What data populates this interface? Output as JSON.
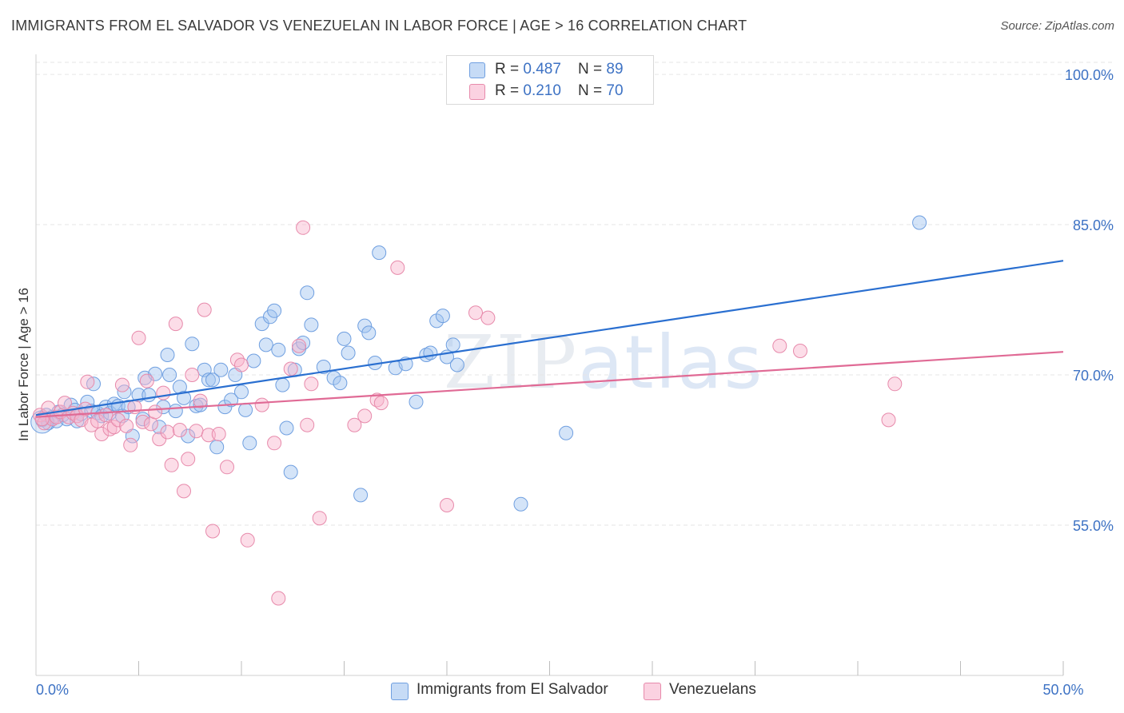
{
  "title": "IMMIGRANTS FROM EL SALVADOR VS VENEZUELAN IN LABOR FORCE | AGE > 16 CORRELATION CHART",
  "source": "Source: ZipAtlas.com",
  "watermark": {
    "part1": "ZIP",
    "part2": "atlas"
  },
  "legend": {
    "rows": [
      {
        "r_label": "R = ",
        "r_value": "0.487",
        "n_label": "N = ",
        "n_value": "89"
      },
      {
        "r_label": "R = ",
        "r_value": "0.210",
        "n_label": "N = ",
        "n_value": "70"
      }
    ]
  },
  "bottom_legend": {
    "items": [
      {
        "label": "Immigrants from El Salvador"
      },
      {
        "label": "Venezuelans"
      }
    ]
  },
  "colors": {
    "blue_fill": "rgba(160,195,240,0.45)",
    "blue_stroke": "#6f9fe0",
    "blue_line": "#2a6fd0",
    "pink_fill": "rgba(248,180,205,0.45)",
    "pink_stroke": "#e78aab",
    "pink_line": "#e06a95",
    "grid": "#e6e6e6",
    "axis_text": "#3d72c4"
  },
  "chart_data": {
    "type": "scatter",
    "title": "IMMIGRANTS FROM EL SALVADOR VS VENEZUELAN IN LABOR FORCE | AGE > 16 CORRELATION CHART",
    "xlabel": "",
    "ylabel": "In Labor Force | Age > 16",
    "xlim": [
      0,
      50
    ],
    "ylim": [
      40,
      102
    ],
    "x_tick_labels": [
      {
        "value": 0,
        "label": "0.0%"
      },
      {
        "value": 50,
        "label": "50.0%"
      }
    ],
    "x_minor_ticks": [
      5,
      10,
      15,
      20,
      25,
      30,
      35,
      40,
      45,
      50
    ],
    "y_ticks": [
      {
        "value": 100,
        "label": "100.0%"
      },
      {
        "value": 85,
        "label": "85.0%"
      },
      {
        "value": 70,
        "label": "70.0%"
      },
      {
        "value": 55,
        "label": "55.0%"
      }
    ],
    "grid": true,
    "legend_position": "top-center",
    "series": [
      {
        "name": "Immigrants from El Salvador",
        "color": "blue",
        "trend": {
          "x": [
            0,
            50
          ],
          "y": [
            66.0,
            81.4
          ]
        },
        "points": [
          [
            0.3,
            65.5
          ],
          [
            0.5,
            66.0
          ],
          [
            0.6,
            65.2
          ],
          [
            0.8,
            65.8
          ],
          [
            1.0,
            65.4
          ],
          [
            1.1,
            66.3
          ],
          [
            1.3,
            66.0
          ],
          [
            1.5,
            65.6
          ],
          [
            1.7,
            67.0
          ],
          [
            1.9,
            66.5
          ],
          [
            2.0,
            65.4
          ],
          [
            2.2,
            66.1
          ],
          [
            2.5,
            67.3
          ],
          [
            2.7,
            66.4
          ],
          [
            2.8,
            69.1
          ],
          [
            3.0,
            66.2
          ],
          [
            3.2,
            65.9
          ],
          [
            3.4,
            66.8
          ],
          [
            3.6,
            66.2
          ],
          [
            3.8,
            67.1
          ],
          [
            4.0,
            66.9
          ],
          [
            4.2,
            65.9
          ],
          [
            4.3,
            68.3
          ],
          [
            4.5,
            66.8
          ],
          [
            4.7,
            63.9
          ],
          [
            5.0,
            68.0
          ],
          [
            5.2,
            65.6
          ],
          [
            5.3,
            69.7
          ],
          [
            5.5,
            68.0
          ],
          [
            5.8,
            70.1
          ],
          [
            6.0,
            64.8
          ],
          [
            6.2,
            66.8
          ],
          [
            6.4,
            72.0
          ],
          [
            6.5,
            70.0
          ],
          [
            6.8,
            66.4
          ],
          [
            7.0,
            68.8
          ],
          [
            7.2,
            67.7
          ],
          [
            7.4,
            63.9
          ],
          [
            7.6,
            73.1
          ],
          [
            7.8,
            66.9
          ],
          [
            8.0,
            67.0
          ],
          [
            8.2,
            70.5
          ],
          [
            8.4,
            69.5
          ],
          [
            8.6,
            69.5
          ],
          [
            8.8,
            62.8
          ],
          [
            9.0,
            70.5
          ],
          [
            9.2,
            66.8
          ],
          [
            9.5,
            67.5
          ],
          [
            9.7,
            70.0
          ],
          [
            10.0,
            68.3
          ],
          [
            10.2,
            66.5
          ],
          [
            10.4,
            63.2
          ],
          [
            10.6,
            71.4
          ],
          [
            11.0,
            75.1
          ],
          [
            11.2,
            73.0
          ],
          [
            11.4,
            75.8
          ],
          [
            11.6,
            76.4
          ],
          [
            11.8,
            72.5
          ],
          [
            12.0,
            69.0
          ],
          [
            12.2,
            64.7
          ],
          [
            12.4,
            60.3
          ],
          [
            12.6,
            70.5
          ],
          [
            12.8,
            72.6
          ],
          [
            13.0,
            73.2
          ],
          [
            13.2,
            78.2
          ],
          [
            13.4,
            75.0
          ],
          [
            14.0,
            70.8
          ],
          [
            14.5,
            69.7
          ],
          [
            14.8,
            69.2
          ],
          [
            15.0,
            73.6
          ],
          [
            15.2,
            72.2
          ],
          [
            15.8,
            58.0
          ],
          [
            16.0,
            74.9
          ],
          [
            16.2,
            74.2
          ],
          [
            16.5,
            71.2
          ],
          [
            16.7,
            82.2
          ],
          [
            17.5,
            70.7
          ],
          [
            18.0,
            71.1
          ],
          [
            18.5,
            67.3
          ],
          [
            19.0,
            72.0
          ],
          [
            19.2,
            72.2
          ],
          [
            19.5,
            75.4
          ],
          [
            19.8,
            75.9
          ],
          [
            20.0,
            71.8
          ],
          [
            20.3,
            73.0
          ],
          [
            20.5,
            71.0
          ],
          [
            23.6,
            57.1
          ],
          [
            25.8,
            64.2
          ],
          [
            43.0,
            85.2
          ]
        ]
      },
      {
        "name": "Venezuelans",
        "color": "pink",
        "trend": {
          "x": [
            0,
            50
          ],
          "y": [
            65.8,
            72.3
          ]
        },
        "points": [
          [
            0.2,
            66.0
          ],
          [
            0.4,
            65.2
          ],
          [
            0.6,
            66.7
          ],
          [
            0.8,
            65.6
          ],
          [
            1.0,
            65.8
          ],
          [
            1.2,
            66.3
          ],
          [
            1.4,
            67.2
          ],
          [
            1.6,
            65.8
          ],
          [
            1.8,
            66.2
          ],
          [
            2.0,
            65.9
          ],
          [
            2.2,
            65.5
          ],
          [
            2.4,
            66.6
          ],
          [
            2.5,
            69.3
          ],
          [
            2.7,
            65.0
          ],
          [
            3.0,
            65.4
          ],
          [
            3.2,
            64.1
          ],
          [
            3.4,
            66.0
          ],
          [
            3.6,
            64.6
          ],
          [
            3.8,
            64.8
          ],
          [
            4.0,
            65.5
          ],
          [
            4.2,
            69.0
          ],
          [
            4.4,
            64.9
          ],
          [
            4.6,
            63.0
          ],
          [
            4.8,
            66.8
          ],
          [
            5.0,
            73.7
          ],
          [
            5.2,
            65.3
          ],
          [
            5.4,
            69.4
          ],
          [
            5.6,
            65.1
          ],
          [
            5.8,
            66.3
          ],
          [
            6.0,
            63.6
          ],
          [
            6.2,
            68.2
          ],
          [
            6.4,
            64.3
          ],
          [
            6.6,
            61.0
          ],
          [
            6.8,
            75.1
          ],
          [
            7.0,
            64.5
          ],
          [
            7.2,
            58.4
          ],
          [
            7.4,
            61.6
          ],
          [
            7.6,
            70.0
          ],
          [
            7.8,
            64.4
          ],
          [
            8.0,
            67.4
          ],
          [
            8.2,
            76.5
          ],
          [
            8.4,
            64.0
          ],
          [
            8.6,
            54.4
          ],
          [
            8.9,
            64.1
          ],
          [
            9.3,
            60.8
          ],
          [
            9.8,
            71.5
          ],
          [
            10.0,
            71.0
          ],
          [
            10.3,
            53.5
          ],
          [
            11.0,
            67.0
          ],
          [
            11.6,
            63.2
          ],
          [
            11.8,
            47.7
          ],
          [
            12.4,
            70.6
          ],
          [
            12.8,
            72.9
          ],
          [
            13.0,
            84.7
          ],
          [
            13.2,
            65.0
          ],
          [
            13.4,
            69.1
          ],
          [
            13.8,
            55.7
          ],
          [
            15.5,
            65.0
          ],
          [
            16.0,
            65.9
          ],
          [
            16.6,
            67.5
          ],
          [
            16.8,
            67.2
          ],
          [
            17.6,
            80.7
          ],
          [
            20.0,
            57.0
          ],
          [
            21.4,
            76.2
          ],
          [
            22.0,
            75.7
          ],
          [
            36.2,
            72.9
          ],
          [
            37.2,
            72.4
          ],
          [
            41.5,
            65.5
          ],
          [
            41.8,
            69.1
          ],
          [
            0.3,
            65.6
          ]
        ]
      }
    ]
  }
}
